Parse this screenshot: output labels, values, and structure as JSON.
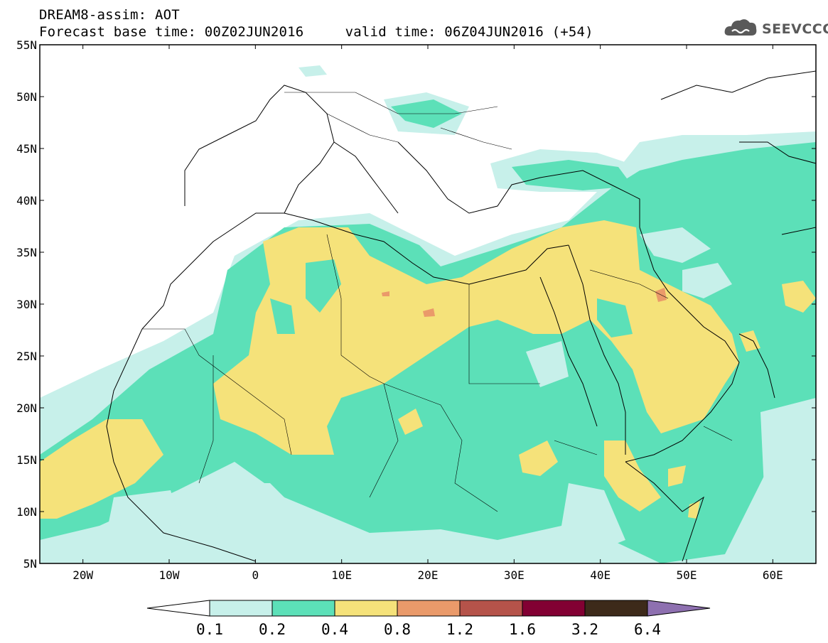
{
  "title_line1": "DREAM8-assim: AOT",
  "title_line2": "Forecast base time: 00Z02JUN2016     valid time: 06Z04JUN2016 (+54)",
  "logo_text": "SEEVCCC",
  "map": {
    "lon_range": [
      -25,
      65
    ],
    "lat_range": [
      5,
      55
    ],
    "lon_ticks": [
      "20W",
      "10W",
      "0",
      "10E",
      "20E",
      "30E",
      "40E",
      "50E",
      "60E"
    ],
    "lat_ticks": [
      "55N",
      "50N",
      "45N",
      "40N",
      "35N",
      "30N",
      "25N",
      "20N",
      "15N",
      "10N",
      "5N"
    ]
  },
  "colorbar": {
    "labels": [
      "0.1",
      "0.2",
      "0.4",
      "0.8",
      "1.2",
      "1.6",
      "3.2",
      "6.4"
    ],
    "colors": [
      "#ffffff",
      "#c7f0ea",
      "#5ce0b8",
      "#f5e27a",
      "#ea9a6a",
      "#b5534a",
      "#820033",
      "#3d2a1a",
      "#8e70b0"
    ]
  }
}
